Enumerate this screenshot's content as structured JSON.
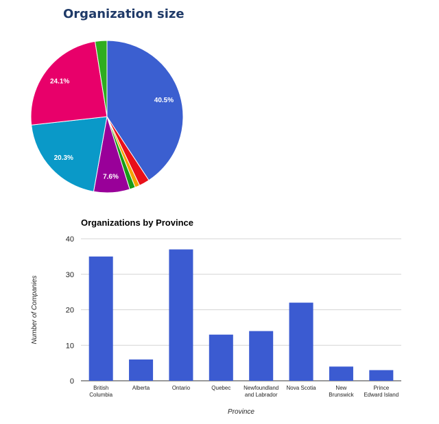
{
  "page": {
    "pie_title": "Organization size",
    "bar_title": "Organizations by Province"
  },
  "chart_data": [
    {
      "type": "pie",
      "title": "Organization size",
      "slices": [
        {
          "value": 40.5,
          "label": "40.5%",
          "color": "#3b5fd0"
        },
        {
          "value": 2.2,
          "label": "",
          "color": "#e8101a"
        },
        {
          "value": 1.0,
          "label": "",
          "color": "#f4a300"
        },
        {
          "value": 1.2,
          "label": "",
          "color": "#179c17"
        },
        {
          "value": 7.6,
          "label": "7.6%",
          "color": "#990099"
        },
        {
          "value": 20.3,
          "label": "20.3%",
          "color": "#0a99c8"
        },
        {
          "value": 24.1,
          "label": "24.1%",
          "color": "#e8006a"
        },
        {
          "value": 2.5,
          "label": "",
          "color": "#2fad1f"
        }
      ]
    },
    {
      "type": "bar",
      "title": "Organizations by Province",
      "categories": [
        [
          "British",
          "Columbia"
        ],
        [
          "Alberta"
        ],
        [
          "Ontario"
        ],
        [
          "Quebec"
        ],
        [
          "Newfoundland",
          "and Labrador"
        ],
        [
          "Nova Scotia"
        ],
        [
          "New",
          "Brunswick"
        ],
        [
          "Prince",
          "Edward Island"
        ]
      ],
      "values": [
        35,
        6,
        37,
        13,
        14,
        22,
        4,
        3
      ],
      "xlabel": "Province",
      "ylabel": "Number of Companies",
      "ylim": [
        0,
        40
      ],
      "yticks": [
        0,
        10,
        20,
        30,
        40
      ],
      "bar_color": "#3b5bd1",
      "grid": true
    }
  ]
}
